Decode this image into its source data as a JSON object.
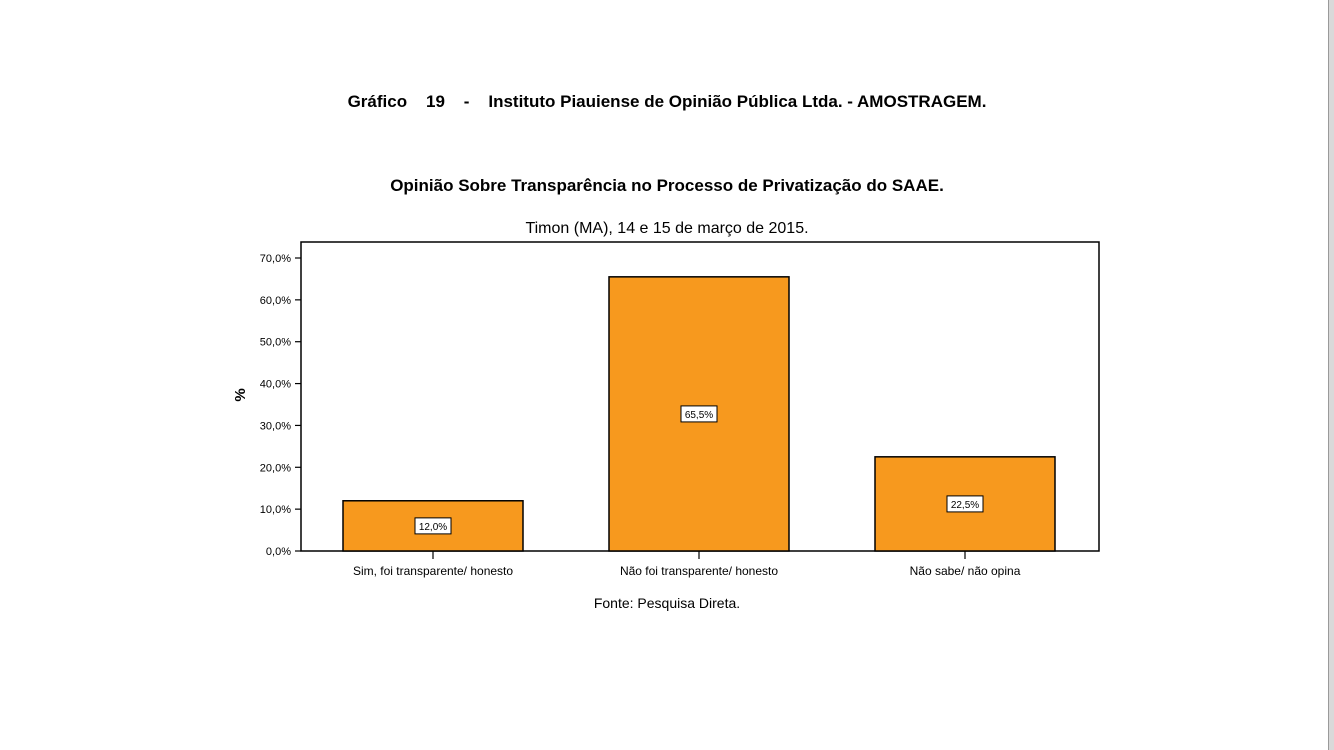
{
  "report_title": "Gráfico    19    -    Instituto Piauiense de Opinião Pública Ltda. - AMOSTRAGEM.",
  "source_note": "Fonte: Pesquisa Direta.",
  "colors": {
    "bar_fill": "#F7991E",
    "bar_stroke": "#000000",
    "axis": "#000000",
    "background": "#FFFFFF"
  },
  "chart_data": {
    "type": "bar",
    "title": "Opinião Sobre Transparência no Processo de Privatização do SAAE.",
    "subtitle": "Timon (MA), 14 e 15 de março de 2015.",
    "xlabel": "",
    "ylabel": "%",
    "ylim": [
      0,
      70
    ],
    "yticks": [
      0,
      10,
      20,
      30,
      40,
      50,
      60,
      70
    ],
    "ytick_labels": [
      "0,0%",
      "10,0%",
      "20,0%",
      "30,0%",
      "40,0%",
      "50,0%",
      "60,0%",
      "70,0%"
    ],
    "categories": [
      "Sim, foi transparente/ honesto",
      "Não foi transparente/ honesto",
      "Não sabe/ não opina"
    ],
    "values": [
      12.0,
      65.5,
      22.5
    ],
    "data_labels": [
      "12,0%",
      "65,5%",
      "22,5%"
    ],
    "grid": false,
    "legend": false
  }
}
